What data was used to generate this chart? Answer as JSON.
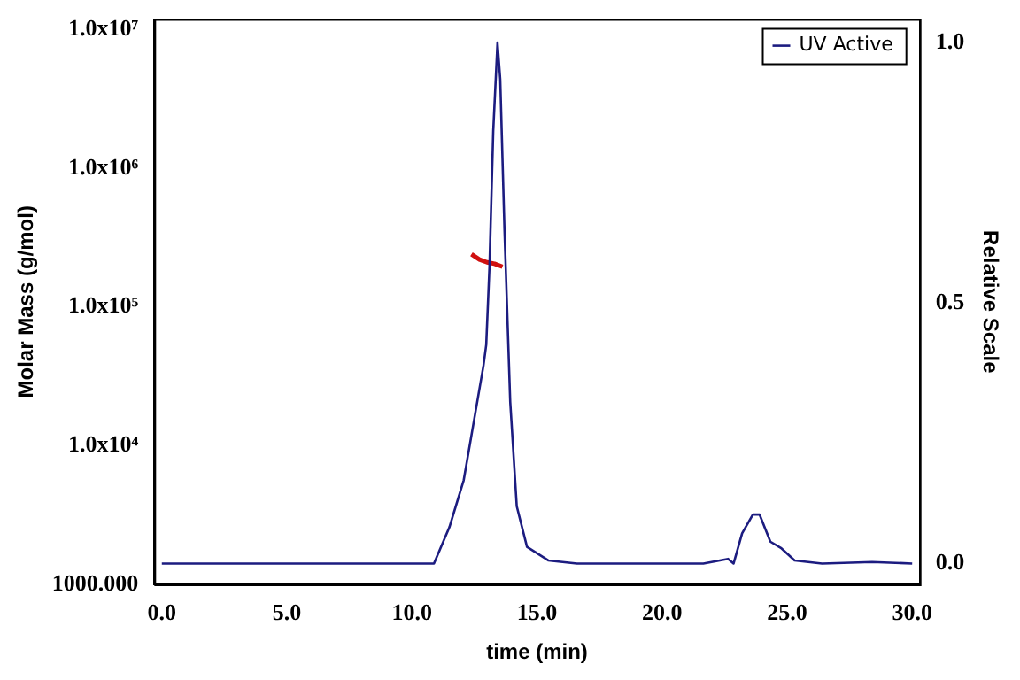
{
  "chart_data": {
    "type": "line",
    "xlabel": "time (min)",
    "ylabel": "Molar Mass (g/mol)",
    "y2label": "Relative Scale",
    "log": "y",
    "grid": false,
    "legend": "top right",
    "marker": "none",
    "line_style": "solid",
    "xlim": [
      -0.3,
      30.3
    ],
    "xticks": [
      {
        "value": 0,
        "label": "0.0"
      },
      {
        "value": 5,
        "label": "5.0"
      },
      {
        "value": 10,
        "label": "10.0"
      },
      {
        "value": 15,
        "label": "15.0"
      },
      {
        "value": 20,
        "label": "20.0"
      },
      {
        "value": 25,
        "label": "25.0"
      },
      {
        "value": 30,
        "label": "30.0"
      }
    ],
    "ylim": [
      1000,
      11900000
    ],
    "yticks": [
      {
        "value": 1000,
        "label": "1000.000"
      },
      {
        "value": 10000,
        "label": "1.0x10⁴"
      },
      {
        "value": 100000,
        "label": "1.0x10⁵"
      },
      {
        "value": 1000000,
        "label": "1.0x10⁶"
      },
      {
        "value": 10000000,
        "label": "1.0x10⁷"
      }
    ],
    "y2lim": [
      -0.04,
      1.045
    ],
    "y2ticks": [
      {
        "value": 0,
        "label": "0.0"
      },
      {
        "value": 0.5,
        "label": "0.5"
      },
      {
        "value": 1,
        "label": "1.0"
      }
    ],
    "series": [
      {
        "name": "UV Active",
        "color": "#1c1c80",
        "axis": "y2",
        "x": [
          0,
          10.88,
          11.5,
          12.07,
          12.86,
          12.97,
          13.1,
          13.25,
          13.42,
          13.53,
          13.7,
          13.93,
          14.19,
          14.6,
          15.45,
          16.6,
          21.65,
          22.64,
          22.86,
          23.2,
          23.63,
          23.9,
          24.33,
          24.75,
          25.3,
          26.4,
          28.4,
          30
        ],
        "values": [
          0,
          0,
          0.07,
          0.16,
          0.38,
          0.42,
          0.57,
          0.83,
          1.0,
          0.93,
          0.64,
          0.31,
          0.11,
          0.032,
          0.006,
          0,
          0,
          0.009,
          0,
          0.058,
          0.094,
          0.094,
          0.042,
          0.03,
          0.006,
          0,
          0.003,
          0
        ]
      },
      {
        "color": "#d01010",
        "axis": "y",
        "x": [
          12.38,
          12.7,
          13.0,
          13.3,
          13.62
        ],
        "values": [
          240000,
          220000,
          210000,
          205000,
          195000
        ]
      }
    ]
  }
}
